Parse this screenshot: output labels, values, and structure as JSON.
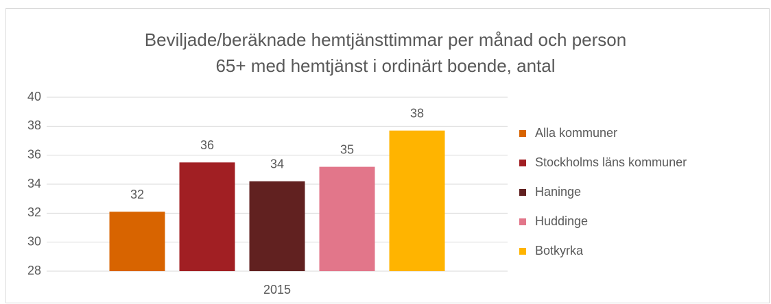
{
  "chart_data": {
    "type": "bar",
    "title": [
      "Beviljade/beräknade hemtjänsttimmar per månad och person",
      "65+ med hemtjänst i ordinärt boende, antal"
    ],
    "categories": [
      "2015"
    ],
    "series": [
      {
        "name": "Alla kommuner",
        "color": "#d86400",
        "values": [
          32.1
        ],
        "value_labels": [
          "32"
        ]
      },
      {
        "name": "Stockholms läns kommuner",
        "color": "#a11f23",
        "values": [
          35.5
        ],
        "value_labels": [
          "36"
        ]
      },
      {
        "name": "Haninge",
        "color": "#612120",
        "values": [
          34.2
        ],
        "value_labels": [
          "34"
        ]
      },
      {
        "name": "Huddinge",
        "color": "#e2768a",
        "values": [
          35.2
        ],
        "value_labels": [
          "35"
        ]
      },
      {
        "name": "Botkyrka",
        "color": "#ffb400",
        "values": [
          37.7
        ],
        "value_labels": [
          "38"
        ]
      }
    ],
    "ylim": [
      28,
      40
    ],
    "yticks": [
      28,
      30,
      32,
      34,
      36,
      38,
      40
    ],
    "grid": true,
    "legend": "right"
  }
}
